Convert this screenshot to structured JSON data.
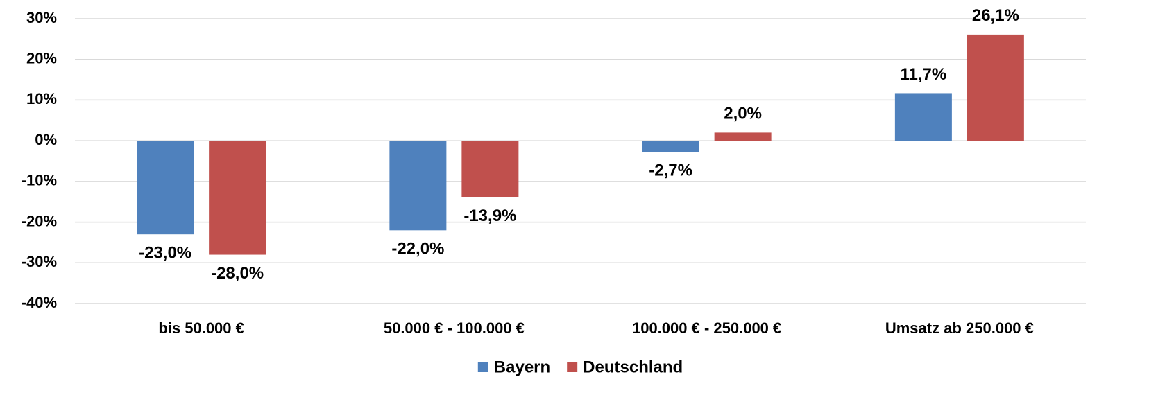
{
  "chart_data": {
    "type": "bar",
    "categories": [
      "bis 50.000 €",
      "50.000 € - 100.000 €",
      "100.000 € - 250.000 €",
      "Umsatz ab 250.000 €"
    ],
    "series": [
      {
        "name": "Bayern",
        "color": "#4f81bd",
        "values": [
          -23.0,
          -22.0,
          -2.7,
          11.7
        ],
        "value_labels": [
          "-23,0%",
          "-22,0%",
          "-2,7%",
          "11,7%"
        ]
      },
      {
        "name": "Deutschland",
        "color": "#c0504d",
        "values": [
          -28.0,
          -13.9,
          2.0,
          26.1
        ],
        "value_labels": [
          "-28,0%",
          "-13,9%",
          "2,0%",
          "26,1%"
        ]
      }
    ],
    "ylim": [
      -40,
      30
    ],
    "yticks": [
      {
        "value": -40,
        "label": "-40%"
      },
      {
        "value": -30,
        "label": "-30%"
      },
      {
        "value": -20,
        "label": "-20%"
      },
      {
        "value": -10,
        "label": "-10%"
      },
      {
        "value": 0,
        "label": "0%"
      },
      {
        "value": 10,
        "label": "10%"
      },
      {
        "value": 20,
        "label": "20%"
      },
      {
        "value": 30,
        "label": "30%"
      }
    ],
    "grid": true,
    "legend": "bottom"
  }
}
